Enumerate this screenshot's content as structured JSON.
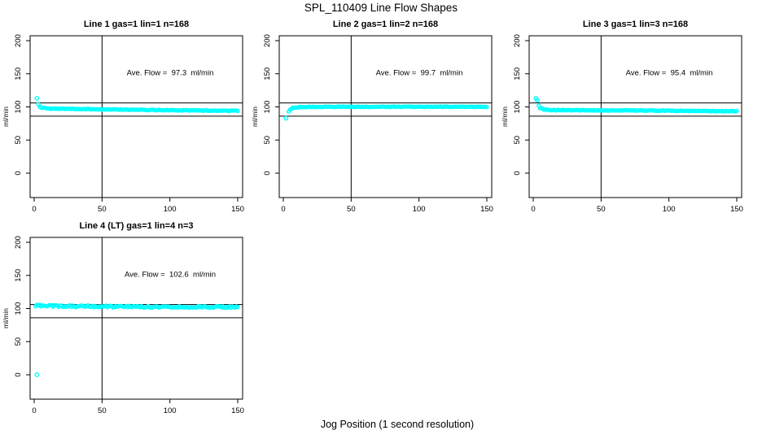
{
  "title": "SPL_110409  Line Flow Shapes",
  "xlabel": "Jog Position (1 second resolution)",
  "colors": {
    "points": "#00FFFF",
    "axis": "#000000",
    "background": "#FFFFFF"
  },
  "chart_data": [
    {
      "type": "scatter",
      "title": "Line 1 gas=1 lin=1 n=168",
      "ylabel": "ml/min",
      "annotation": "Ave. Flow =  97.3  ml/min",
      "ave_flow": 97.3,
      "n": 168,
      "x_ticks": [
        0,
        50,
        100,
        150
      ],
      "y_ticks": [
        0,
        50,
        100,
        150,
        200
      ],
      "xlim": [
        -3,
        154
      ],
      "ylim": [
        -37,
        207
      ],
      "hlines": [
        106,
        86
      ],
      "vline": 50,
      "outliers": [
        [
          2,
          113
        ]
      ],
      "profile": [
        [
          3,
          104
        ],
        [
          4,
          100.5
        ],
        [
          6,
          98.5
        ],
        [
          12,
          97.5
        ],
        [
          60,
          96
        ],
        [
          110,
          94.8
        ],
        [
          150,
          94.2
        ]
      ],
      "jitter": 0.5,
      "x_end": 150
    },
    {
      "type": "scatter",
      "title": "Line 2 gas=1 lin=2 n=168",
      "ylabel": "ml/min",
      "annotation": "Ave. Flow =  99.7  ml/min",
      "ave_flow": 99.7,
      "n": 168,
      "x_ticks": [
        0,
        50,
        100,
        150
      ],
      "y_ticks": [
        0,
        50,
        100,
        150,
        200
      ],
      "xlim": [
        -3,
        154
      ],
      "ylim": [
        -37,
        207
      ],
      "hlines": [
        106,
        86
      ],
      "vline": 50,
      "outliers": [
        [
          2,
          83
        ]
      ],
      "profile": [
        [
          4,
          93
        ],
        [
          5,
          96
        ],
        [
          7,
          98.5
        ],
        [
          12,
          99.8
        ],
        [
          30,
          100.2
        ],
        [
          150,
          100.2
        ]
      ],
      "jitter": 0.4,
      "x_end": 150
    },
    {
      "type": "scatter",
      "title": "Line 3 gas=1 lin=3 n=168",
      "ylabel": "ml/min",
      "annotation": "Ave. Flow =  95.4  ml/min",
      "ave_flow": 95.4,
      "n": 168,
      "x_ticks": [
        0,
        50,
        100,
        150
      ],
      "y_ticks": [
        0,
        50,
        100,
        150,
        200
      ],
      "xlim": [
        -3,
        154
      ],
      "ylim": [
        -37,
        207
      ],
      "hlines": [
        106,
        86
      ],
      "vline": 50,
      "outliers": [
        [
          2,
          113
        ],
        [
          3,
          110
        ]
      ],
      "profile": [
        [
          4,
          102
        ],
        [
          5,
          98.5
        ],
        [
          8,
          96
        ],
        [
          15,
          95.2
        ],
        [
          80,
          94.5
        ],
        [
          150,
          93.5
        ]
      ],
      "jitter": 0.5,
      "x_end": 150
    },
    {
      "type": "scatter",
      "title": "Line 4 (LT) gas=1 lin=4 n=3",
      "ylabel": "ml/min",
      "annotation": "Ave. Flow =  102.6  ml/min",
      "ave_flow": 102.6,
      "n": 3,
      "x_ticks": [
        0,
        50,
        100,
        150
      ],
      "y_ticks": [
        0,
        50,
        100,
        150,
        200
      ],
      "xlim": [
        -3,
        154
      ],
      "ylim": [
        -37,
        207
      ],
      "hlines": [
        106,
        86
      ],
      "vline": 50,
      "outliers": [
        [
          2,
          0
        ]
      ],
      "profile": [
        [
          1,
          104.5
        ],
        [
          25,
          103.5
        ],
        [
          70,
          102.8
        ],
        [
          150,
          102.2
        ]
      ],
      "jitter": 1.3,
      "x_end": 150
    }
  ]
}
